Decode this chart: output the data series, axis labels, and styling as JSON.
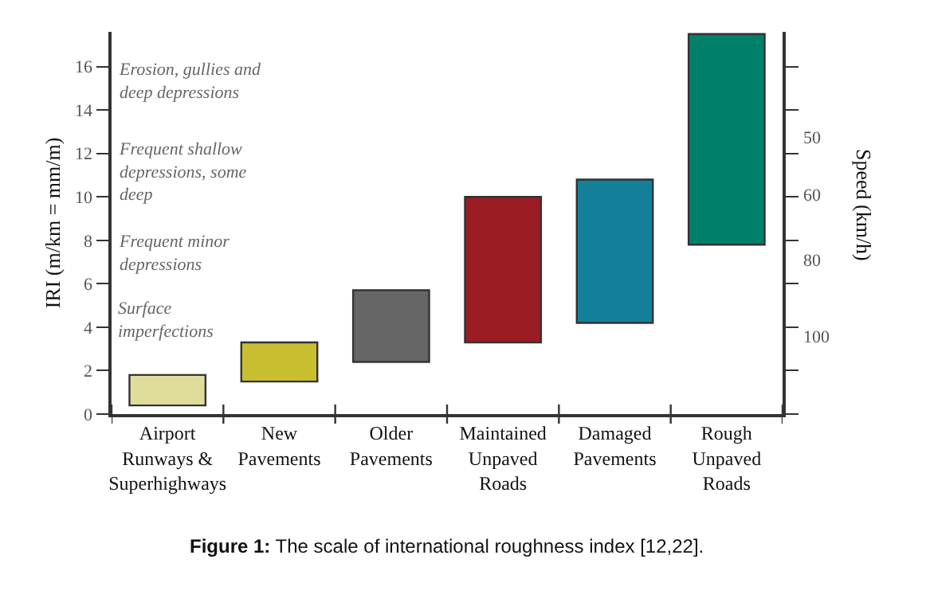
{
  "chart_data": {
    "type": "bar",
    "ylabel": "IRI (m/km = mm/m)",
    "y2label": "Speed (km/h)",
    "categories": [
      "Airport Runways & Superhighways",
      "New Pavements",
      "Older Pavements",
      "Maintained Unpaved Roads",
      "Damaged Pavements",
      "Rough Unpaved Roads"
    ],
    "values": [
      1.4,
      1.8,
      3.3,
      6.7,
      6.6,
      9.7
    ],
    "base": [
      0.4,
      1.5,
      2.4,
      3.3,
      4.2,
      7.8
    ],
    "colors": [
      "#e0dd9a",
      "#c8bf30",
      "#666666",
      "#9b1c22",
      "#137f98",
      "#00806a"
    ],
    "ylim": [
      0,
      17.6
    ],
    "yticks": [
      0,
      2,
      4,
      6,
      8,
      10,
      12,
      14,
      16
    ],
    "annotations": [
      "Erosion, gullies and deep depressions",
      "Frequent shallow depressions, some deep",
      "Frequent minor depressions",
      "Surface imperfections",
      "Figure 1: The scale of international roughness index [12,22].",
      "50",
      "60",
      "80",
      "100"
    ]
  }
}
